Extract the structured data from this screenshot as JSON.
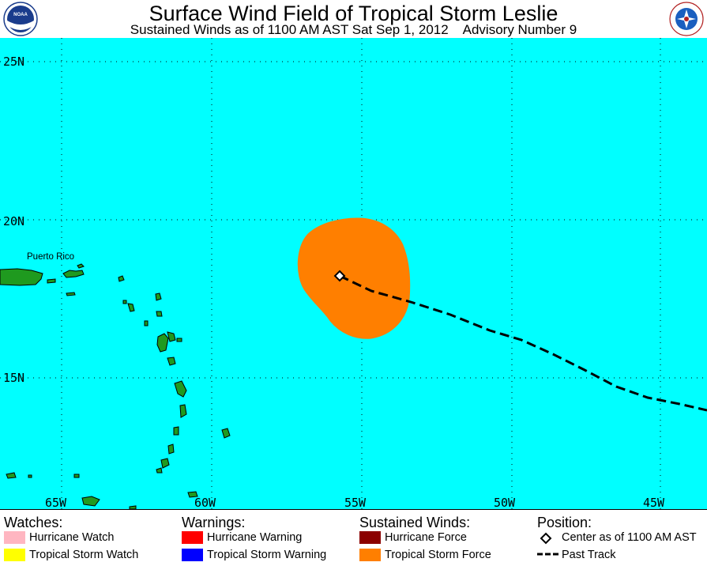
{
  "header": {
    "title": "Surface Wind Field of Tropical Storm Leslie",
    "subtitle": "Sustained Winds as of 1100 AM AST Sat Sep 1, 2012    Advisory Number 9",
    "left_logo": {
      "icon": "noaa-logo",
      "text": "NOAA"
    },
    "right_logo": {
      "icon": "nws-logo",
      "text": "NATIONAL WEATHER SERVICE"
    }
  },
  "map": {
    "ocean_color": "#00ffff",
    "land_color": "#1f9a1f",
    "wind_field_color": "#ff7f00",
    "lat_labels": [
      "25N",
      "20N",
      "15N"
    ],
    "lon_labels": [
      "65W",
      "60W",
      "55W",
      "50W",
      "45W"
    ],
    "place_labels": {
      "puerto_rico": "Puerto Rico"
    },
    "center_marker": "diamond",
    "storm_center": {
      "lat": 18.0,
      "lon": 55.5
    },
    "past_track": [
      [
        55.5,
        18.0
      ],
      [
        53.0,
        17.4
      ],
      [
        49.5,
        16.4
      ],
      [
        47.5,
        15.6
      ],
      [
        45.0,
        14.3
      ],
      [
        43.0,
        13.8
      ]
    ]
  },
  "legend": {
    "watches": {
      "heading": "Watches:",
      "items": [
        {
          "label": "Hurricane Watch",
          "color": "#ffb6c1"
        },
        {
          "label": "Tropical Storm Watch",
          "color": "#ffff00"
        }
      ]
    },
    "warnings": {
      "heading": "Warnings:",
      "items": [
        {
          "label": "Hurricane Warning",
          "color": "#ff0000"
        },
        {
          "label": "Tropical Storm Warning",
          "color": "#0000ff"
        }
      ]
    },
    "winds": {
      "heading": "Sustained Winds:",
      "items": [
        {
          "label": "Hurricane Force",
          "color": "#8b0000"
        },
        {
          "label": "Tropical Storm Force",
          "color": "#ff7f00"
        }
      ]
    },
    "position": {
      "heading": "Position:",
      "items": [
        {
          "label": "Center as of 1100 AM AST",
          "icon": "diamond-icon"
        },
        {
          "label": "Past Track",
          "icon": "dashed-line-icon"
        }
      ]
    }
  }
}
